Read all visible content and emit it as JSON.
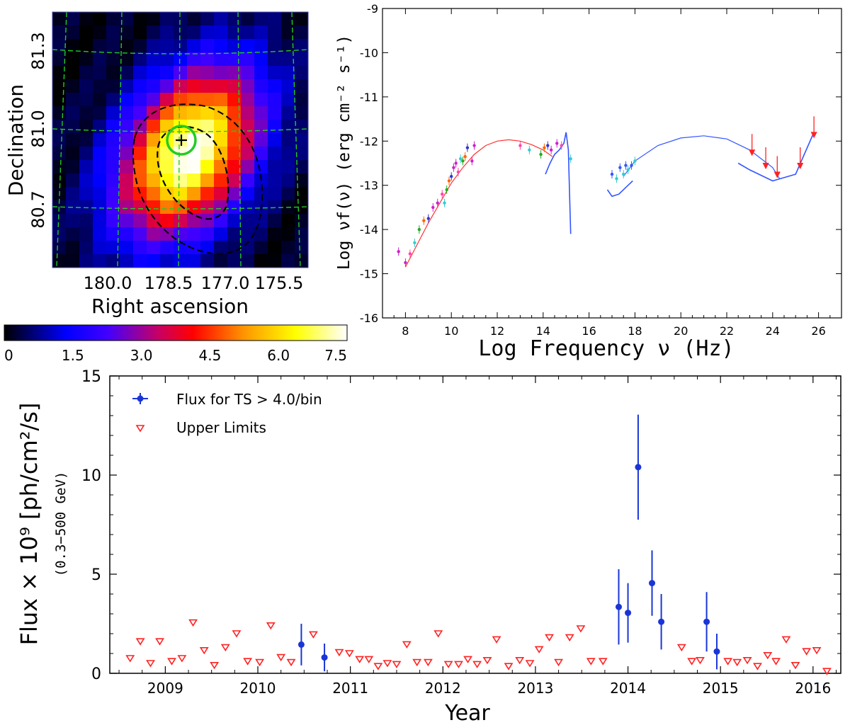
{
  "colors": {
    "grid_line": "#22cc22",
    "source_circle": "#22cc22",
    "contour": "#000000",
    "sed_synchrotron": "#ff3333",
    "sed_ic": "#3355ff",
    "flux_points": "#1a35d6",
    "upper_limits": "#ff2222"
  },
  "chart_data": [
    {
      "id": "ts_map",
      "type": "heatmap",
      "title": "",
      "xlabel": "Right ascension",
      "ylabel": "Declination",
      "xtick_labels": [
        "180.0",
        "178.5",
        "177.0",
        "175.5"
      ],
      "ytick_labels": [
        "81.3",
        "81.0",
        "80.7"
      ],
      "colorbar": {
        "ticks": [
          "0",
          "1.5",
          "3.0",
          "4.5",
          "6.0",
          "7.5"
        ],
        "range": [
          0,
          7.5
        ],
        "colormap": "black-blue-red-yellow-white"
      },
      "source_marker": "plus-in-circle",
      "contours": 2,
      "peak_value": 7.5
    },
    {
      "id": "sed",
      "type": "scatter",
      "title": "",
      "xlabel": "Log Frequency ν (Hz)",
      "ylabel": "Log νf(ν) (erg cm⁻² s⁻¹)",
      "xlim": [
        7,
        27
      ],
      "ylim": [
        -16,
        -9
      ],
      "xticks": [
        "8",
        "10",
        "12",
        "14",
        "16",
        "18",
        "20",
        "22",
        "24",
        "26"
      ],
      "yticks": [
        "-16",
        "-15",
        "-14",
        "-13",
        "-12",
        "-11",
        "-10",
        "-9"
      ],
      "models": [
        {
          "color": "red",
          "points": [
            [
              8.0,
              -14.85
            ],
            [
              8.5,
              -14.35
            ],
            [
              9.0,
              -13.85
            ],
            [
              9.5,
              -13.4
            ],
            [
              10.0,
              -12.95
            ],
            [
              10.5,
              -12.6
            ],
            [
              11.0,
              -12.3
            ],
            [
              11.5,
              -12.1
            ],
            [
              12.0,
              -12.0
            ],
            [
              12.5,
              -11.97
            ],
            [
              13.0,
              -12.0
            ],
            [
              13.5,
              -12.08
            ],
            [
              14.0,
              -12.2
            ],
            [
              14.4,
              -12.35
            ]
          ]
        },
        {
          "color": "blue",
          "points": [
            [
              17.5,
              -12.8
            ],
            [
              18.0,
              -12.45
            ],
            [
              19.0,
              -12.1
            ],
            [
              20.0,
              -11.93
            ],
            [
              21.0,
              -11.88
            ],
            [
              22.0,
              -11.95
            ],
            [
              23.0,
              -12.2
            ],
            [
              24.0,
              -12.6
            ],
            [
              24.3,
              -12.85
            ]
          ]
        }
      ],
      "optical_uv_spectrum": [
        [
          14.1,
          -12.75
        ],
        [
          14.3,
          -12.5
        ],
        [
          14.5,
          -12.3
        ],
        [
          14.7,
          -12.2
        ],
        [
          14.9,
          -12.05
        ],
        [
          15.0,
          -11.8
        ],
        [
          15.05,
          -12.0
        ],
        [
          15.1,
          -12.2
        ],
        [
          15.15,
          -13.2
        ],
        [
          15.2,
          -14.1
        ]
      ],
      "xray_bowtie": [
        [
          16.8,
          -13.1
        ],
        [
          17.0,
          -13.25
        ],
        [
          17.3,
          -13.2
        ],
        [
          17.7,
          -13.0
        ],
        [
          17.9,
          -12.9
        ]
      ],
      "gamma_bowtie": [
        [
          22.5,
          -12.5
        ],
        [
          23.0,
          -12.65
        ],
        [
          24.0,
          -12.9
        ],
        [
          25.0,
          -12.75
        ],
        [
          25.8,
          -11.8
        ]
      ],
      "data_points": [
        [
          7.7,
          -14.5
        ],
        [
          8.0,
          -14.75
        ],
        [
          8.2,
          -14.55
        ],
        [
          8.4,
          -14.3
        ],
        [
          8.6,
          -14.0
        ],
        [
          8.8,
          -13.8
        ],
        [
          9.0,
          -13.75
        ],
        [
          9.2,
          -13.5
        ],
        [
          9.4,
          -13.4
        ],
        [
          9.6,
          -13.2
        ],
        [
          9.7,
          -13.4
        ],
        [
          9.8,
          -13.1
        ],
        [
          9.9,
          -12.9
        ],
        [
          10.0,
          -12.8
        ],
        [
          10.1,
          -12.6
        ],
        [
          10.2,
          -12.5
        ],
        [
          10.3,
          -12.7
        ],
        [
          10.4,
          -12.4
        ],
        [
          10.5,
          -12.45
        ],
        [
          10.6,
          -12.35
        ],
        [
          10.7,
          -12.15
        ],
        [
          10.9,
          -12.45
        ],
        [
          11.0,
          -12.1
        ],
        [
          13.0,
          -12.1
        ],
        [
          13.4,
          -12.2
        ],
        [
          13.9,
          -12.3
        ],
        [
          14.05,
          -12.15
        ],
        [
          14.2,
          -12.1
        ],
        [
          14.35,
          -12.2
        ],
        [
          14.6,
          -12.05
        ],
        [
          14.8,
          -12.1
        ],
        [
          15.2,
          -12.4
        ],
        [
          17.0,
          -12.75
        ],
        [
          17.2,
          -12.85
        ],
        [
          17.35,
          -12.6
        ],
        [
          17.5,
          -12.75
        ],
        [
          17.6,
          -12.55
        ],
        [
          17.7,
          -12.65
        ],
        [
          17.85,
          -12.55
        ],
        [
          18.0,
          -12.45
        ]
      ],
      "upper_limits": [
        [
          23.1,
          -12.0
        ],
        [
          23.7,
          -12.3
        ],
        [
          24.2,
          -12.5
        ],
        [
          25.2,
          -12.3
        ],
        [
          25.8,
          -11.6
        ]
      ]
    },
    {
      "id": "light_curve",
      "type": "scatter",
      "title": "",
      "xlabel": "Year",
      "ylabel": "Flux × 10⁹ [ph/cm²/s]",
      "ylabel_sub": "(0.3−500 GeV)",
      "xlim": [
        2008.4,
        2016.3
      ],
      "ylim": [
        0,
        15
      ],
      "xticks": [
        "2009",
        "2010",
        "2011",
        "2012",
        "2013",
        "2014",
        "2015",
        "2016"
      ],
      "yticks": [
        "0",
        "5",
        "10",
        "15"
      ],
      "legend": {
        "position": "top-left",
        "entries": [
          "Flux for TS > 4.0/bin",
          "Upper Limits"
        ]
      },
      "series": [
        {
          "name": "Flux for TS > 4.0/bin",
          "x": [
            2010.47,
            2010.72,
            2013.9,
            2014.0,
            2014.11,
            2014.26,
            2014.36,
            2014.85,
            2014.96
          ],
          "y": [
            1.45,
            0.8,
            3.35,
            3.05,
            10.4,
            4.55,
            2.6,
            2.6,
            1.1
          ],
          "err": [
            1.05,
            0.7,
            1.9,
            1.5,
            2.65,
            1.65,
            1.4,
            1.5,
            0.9
          ]
        },
        {
          "name": "Upper Limits",
          "x": [
            2008.62,
            2008.73,
            2008.84,
            2008.94,
            2009.07,
            2009.18,
            2009.3,
            2009.42,
            2009.53,
            2009.65,
            2009.77,
            2009.89,
            2010.02,
            2010.14,
            2010.25,
            2010.36,
            2010.6,
            2010.88,
            2010.99,
            2011.1,
            2011.2,
            2011.3,
            2011.4,
            2011.5,
            2011.61,
            2011.72,
            2011.84,
            2011.95,
            2012.06,
            2012.17,
            2012.27,
            2012.37,
            2012.48,
            2012.58,
            2012.71,
            2012.83,
            2012.94,
            2013.04,
            2013.15,
            2013.25,
            2013.37,
            2013.49,
            2013.6,
            2013.73,
            2014.58,
            2014.69,
            2014.78,
            2015.08,
            2015.18,
            2015.29,
            2015.4,
            2015.51,
            2015.6,
            2015.71,
            2015.81,
            2015.93,
            2016.04,
            2016.15
          ],
          "y": [
            0.75,
            1.6,
            0.5,
            1.6,
            0.6,
            0.75,
            2.55,
            1.15,
            0.4,
            1.3,
            2.0,
            0.6,
            0.55,
            2.4,
            0.8,
            0.55,
            1.95,
            1.05,
            1.0,
            0.7,
            0.7,
            0.35,
            0.5,
            0.45,
            1.45,
            0.55,
            0.55,
            2.0,
            0.45,
            0.45,
            0.7,
            0.45,
            0.65,
            1.7,
            0.35,
            0.65,
            0.5,
            1.2,
            1.8,
            0.55,
            1.8,
            2.25,
            0.6,
            0.6,
            1.3,
            0.6,
            0.65,
            0.6,
            0.55,
            0.65,
            0.35,
            0.9,
            0.6,
            1.7,
            0.4,
            1.1,
            1.15,
            0.1
          ]
        }
      ]
    }
  ]
}
